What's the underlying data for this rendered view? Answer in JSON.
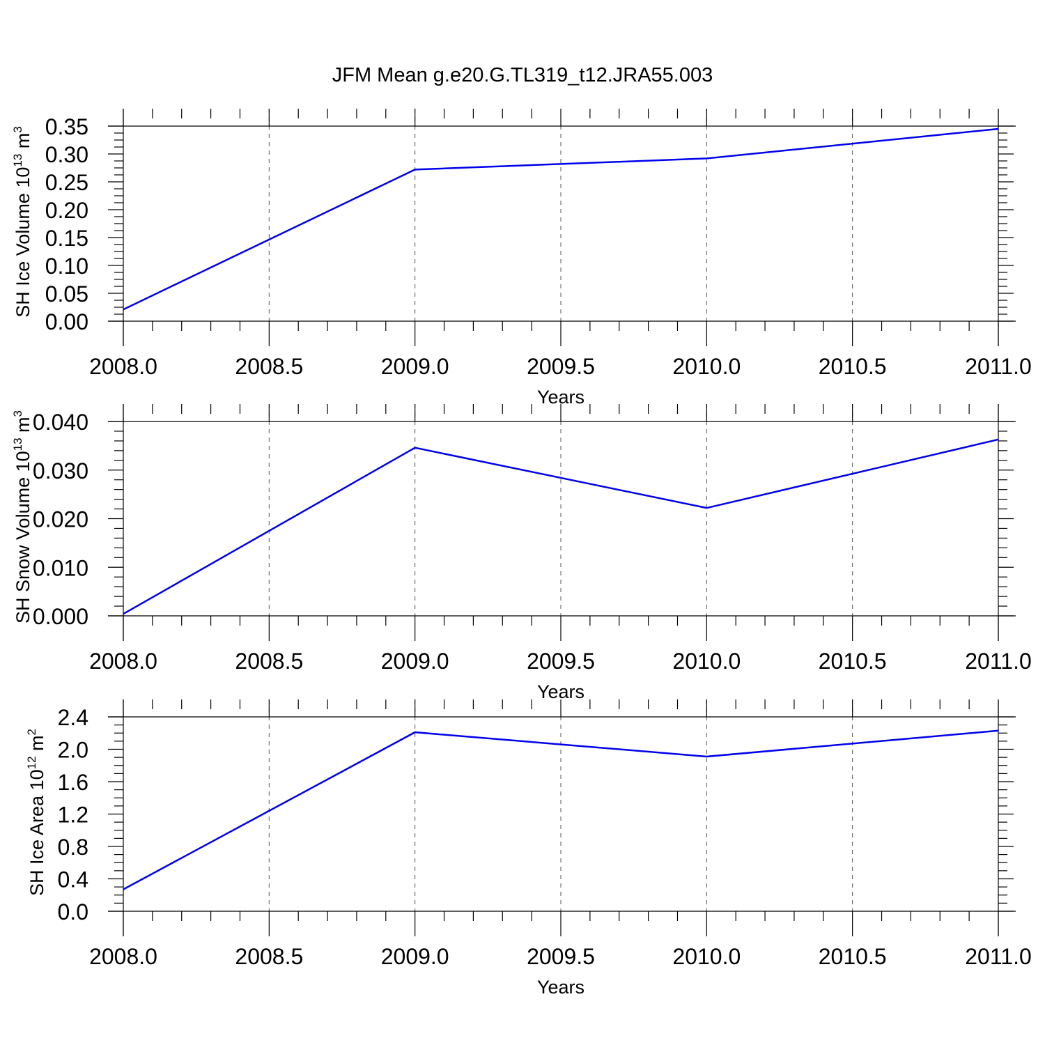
{
  "title": "JFM Mean g.e20.G.TL319_t12.JRA55.003",
  "chart_data": [
    {
      "type": "line",
      "ylabel": "SH Ice Volume",
      "ylabel_unit_base": "10",
      "ylabel_unit_exp": "13",
      "ylabel_unit_sym": "m",
      "ylabel_unit_sym_exp": "3",
      "xlabel": "Years",
      "x": [
        2008.0,
        2009.0,
        2010.0,
        2011.0
      ],
      "values": [
        0.021,
        0.272,
        0.292,
        0.345
      ],
      "xlim": [
        2008.0,
        2011.0
      ],
      "ylim": [
        0.0,
        0.35
      ],
      "xticks": [
        "2008.0",
        "2008.5",
        "2009.0",
        "2009.5",
        "2010.0",
        "2010.5",
        "2011.0"
      ],
      "yticks": [
        "0.00",
        "0.05",
        "0.10",
        "0.15",
        "0.20",
        "0.25",
        "0.30",
        "0.35"
      ],
      "grid": "vertical-dashed",
      "color": "#0000ee"
    },
    {
      "type": "line",
      "ylabel": "SH Snow Volume",
      "ylabel_unit_base": "10",
      "ylabel_unit_exp": "13",
      "ylabel_unit_sym": "m",
      "ylabel_unit_sym_exp": "3",
      "xlabel": "Years",
      "x": [
        2008.0,
        2009.0,
        2010.0,
        2011.0
      ],
      "values": [
        0.0004,
        0.0346,
        0.0222,
        0.0363
      ],
      "xlim": [
        2008.0,
        2011.0
      ],
      "ylim": [
        0.0,
        0.04
      ],
      "xticks": [
        "2008.0",
        "2008.5",
        "2009.0",
        "2009.5",
        "2010.0",
        "2010.5",
        "2011.0"
      ],
      "yticks": [
        "0.000",
        "0.010",
        "0.020",
        "0.030",
        "0.040"
      ],
      "grid": "vertical-dashed",
      "color": "#0000ee"
    },
    {
      "type": "line",
      "ylabel": "SH Ice Area",
      "ylabel_unit_base": "10",
      "ylabel_unit_exp": "12",
      "ylabel_unit_sym": "m",
      "ylabel_unit_sym_exp": "2",
      "xlabel": "Years",
      "x": [
        2008.0,
        2009.0,
        2010.0,
        2011.0
      ],
      "values": [
        0.27,
        2.21,
        1.91,
        2.23
      ],
      "xlim": [
        2008.0,
        2011.0
      ],
      "ylim": [
        0.0,
        2.4
      ],
      "xticks": [
        "2008.0",
        "2008.5",
        "2009.0",
        "2009.5",
        "2010.0",
        "2010.5",
        "2011.0"
      ],
      "yticks": [
        "0.0",
        "0.4",
        "0.8",
        "1.2",
        "1.6",
        "2.0",
        "2.4"
      ],
      "grid": "vertical-dashed",
      "color": "#0000ee"
    }
  ]
}
